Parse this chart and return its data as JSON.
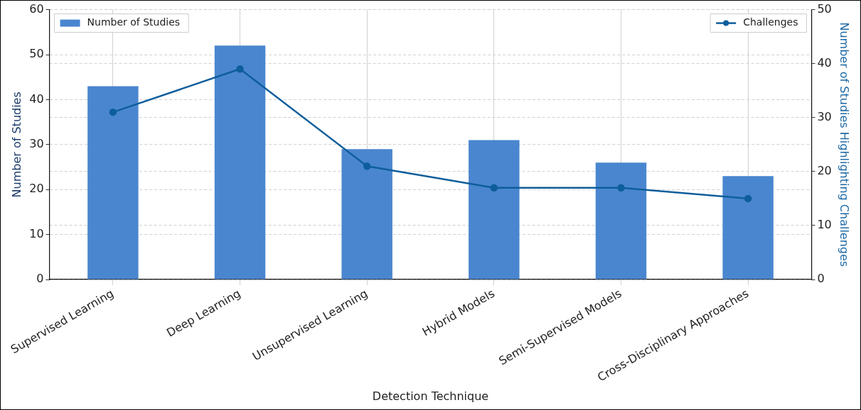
{
  "chart_data": {
    "type": "bar",
    "xlabel": "Detection Technique",
    "ylabel": "Number of Studies",
    "y2label": "Number of Studies Highlighting Challenges",
    "categories": [
      "Supervised Learning",
      "Deep Learning",
      "Unsupervised Learning",
      "Hybrid Models",
      "Semi-Supervised Models",
      "Cross-Disciplinary Approaches"
    ],
    "series": [
      {
        "name": "Number of Studies",
        "color": "#4a86cf",
        "values": [
          43,
          52,
          29,
          31,
          26,
          23
        ]
      },
      {
        "name": "Challenges",
        "type": "line",
        "axis": "y2",
        "color": "#0e5e9c",
        "values": [
          31,
          39,
          21,
          17,
          17,
          15
        ],
        "marker": "circle"
      }
    ],
    "ylim": [
      0,
      60
    ],
    "yticks": [
      0,
      10,
      20,
      30,
      40,
      50,
      60
    ],
    "y2lim": [
      0,
      50
    ],
    "y2ticks": [
      0,
      10,
      20,
      30,
      40,
      50
    ],
    "grid": true,
    "legend": "top",
    "line_style": "solid"
  }
}
